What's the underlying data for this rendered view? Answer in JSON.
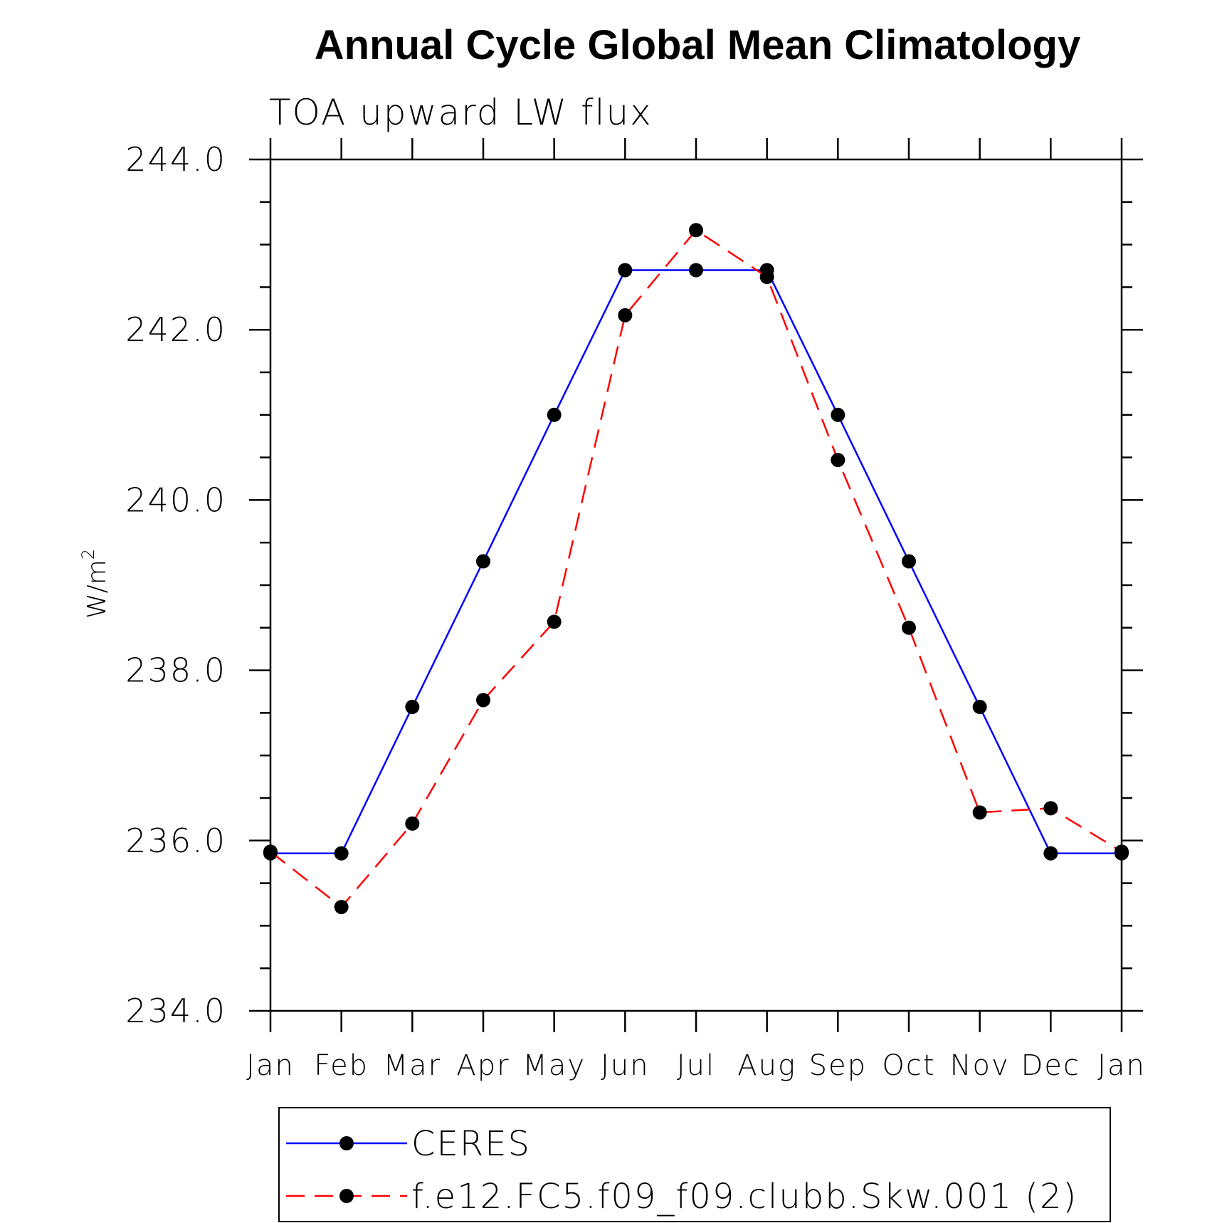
{
  "chart_data": {
    "type": "line",
    "title": "Annual Cycle Global Mean Climatology",
    "subtitle": "TOA upward LW flux",
    "xlabel": "",
    "ylabel": "W/m",
    "ylabel_superscript": "2",
    "ylim": [
      234.0,
      244.0
    ],
    "yticks": [
      "244.0",
      "242.0",
      "240.0",
      "238.0",
      "236.0",
      "234.0"
    ],
    "ytick_values": [
      244.0,
      242.0,
      240.0,
      238.0,
      236.0,
      234.0
    ],
    "categories": [
      "Jan",
      "Feb",
      "Mar",
      "Apr",
      "May",
      "Jun",
      "Jul",
      "Aug",
      "Sep",
      "Oct",
      "Nov",
      "Dec",
      "Jan"
    ],
    "grid": false,
    "legend_position": "bottom",
    "series": [
      {
        "name": "CERES",
        "color": "#0000ff",
        "line_style": "solid",
        "marker": "filled-circle",
        "values": [
          235.85,
          235.85,
          237.57,
          239.28,
          241.0,
          242.7,
          242.7,
          242.7,
          241.0,
          239.28,
          237.57,
          235.85,
          235.85
        ]
      },
      {
        "name": "f.e12.FC5.f09_f09.clubb.Skw.001 (2)",
        "color": "#ff0000",
        "line_style": "dashed",
        "marker": "filled-circle",
        "values": [
          235.87,
          235.22,
          236.2,
          237.65,
          238.57,
          242.17,
          243.17,
          242.62,
          240.47,
          238.5,
          236.33,
          236.38,
          235.87
        ]
      }
    ]
  }
}
